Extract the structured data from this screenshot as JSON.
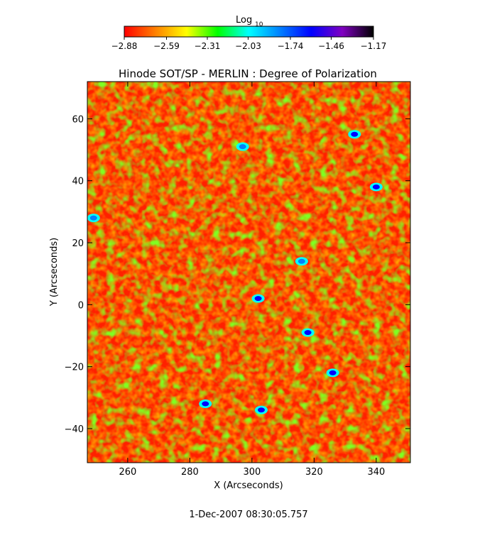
{
  "chart_data": {
    "type": "heatmap",
    "title": "Hinode SOT/SP - MERLIN : Degree of Polarization",
    "xlabel": "X (Arcseconds)",
    "ylabel": "Y (Arcseconds)",
    "xlim": [
      247,
      351
    ],
    "ylim": [
      -51,
      72
    ],
    "x_ticks": [
      260,
      280,
      300,
      320,
      340
    ],
    "y_ticks": [
      -40,
      -20,
      0,
      20,
      40,
      60
    ],
    "x_tick_labels": [
      "260",
      "280",
      "300",
      "320",
      "340"
    ],
    "y_tick_labels": [
      "−40",
      "−20",
      "0",
      "20",
      "40",
      "60"
    ],
    "colorbar": {
      "label_main": "Log",
      "label_sub": "10",
      "min": -2.88,
      "max": -1.17,
      "ticks": [
        -2.88,
        -2.59,
        -2.31,
        -2.03,
        -1.74,
        -1.46,
        -1.17
      ],
      "tick_labels": [
        "−2.88",
        "−2.59",
        "−2.31",
        "−2.03",
        "−1.74",
        "−1.46",
        "−1.17"
      ]
    },
    "colormap": [
      "#ff0000",
      "#ff8000",
      "#ffff00",
      "#00ff00",
      "#00ffff",
      "#0080ff",
      "#0000ff",
      "#8000c0",
      "#000000"
    ],
    "notable_features": [
      {
        "x": 303,
        "y": -34,
        "level": -1.6
      },
      {
        "x": 285,
        "y": -32,
        "level": -1.6
      },
      {
        "x": 333,
        "y": 55,
        "level": -1.6
      },
      {
        "x": 340,
        "y": 38,
        "level": -1.6
      },
      {
        "x": 318,
        "y": -9,
        "level": -1.6
      },
      {
        "x": 302,
        "y": 2,
        "level": -1.7
      },
      {
        "x": 326,
        "y": -22,
        "level": -1.7
      },
      {
        "x": 249,
        "y": 28,
        "level": -1.8
      },
      {
        "x": 297,
        "y": 51,
        "level": -1.8
      },
      {
        "x": 316,
        "y": 14,
        "level": -1.8
      }
    ],
    "timestamp": "1-Dec-2007 08:30:05.757"
  }
}
